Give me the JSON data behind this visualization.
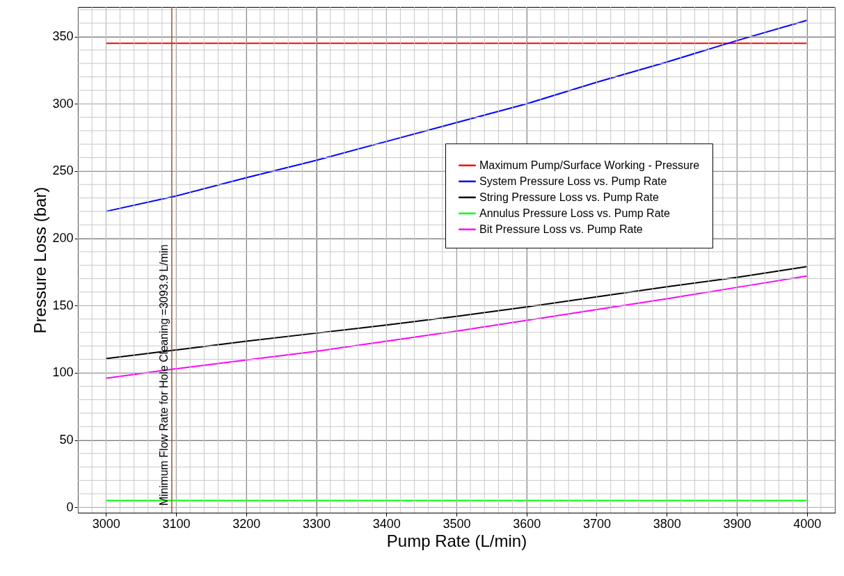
{
  "chart_data": {
    "type": "line",
    "xlabel": "Pump Rate (L/min)",
    "ylabel": "Pressure Loss (bar)",
    "x": [
      3000,
      3100,
      3200,
      3300,
      3400,
      3500,
      3600,
      3700,
      3800,
      3900,
      4000
    ],
    "series": [
      {
        "name": "Maximum Pump/Surface Working - Pressure",
        "color": "#ff0000",
        "values": [
          345,
          345,
          345,
          345,
          345,
          345,
          345,
          345,
          345,
          345,
          345
        ]
      },
      {
        "name": "System Pressure Loss vs. Pump Rate",
        "color": "#0000ff",
        "values": [
          220,
          231.5,
          245,
          258,
          272,
          286,
          300,
          316,
          331,
          347,
          362
        ]
      },
      {
        "name": "String Pressure Loss vs. Pump Rate",
        "color": "#000000",
        "values": [
          110.5,
          117,
          123.5,
          129.5,
          135.5,
          142,
          149,
          156.5,
          164,
          171,
          179
        ]
      },
      {
        "name": "Annulus Pressure Loss vs. Pump Rate",
        "color": "#00ff00",
        "values": [
          5,
          5,
          5,
          5,
          5,
          5,
          5,
          5,
          5,
          5,
          5
        ]
      },
      {
        "name": "Bit Pressure Loss vs. Pump Rate",
        "color": "#ff00ff",
        "values": [
          96,
          103,
          109.5,
          116,
          123.5,
          131,
          139,
          147,
          155,
          163.5,
          172
        ]
      }
    ],
    "xlim": [
      2960,
      4040
    ],
    "ylim": [
      -4,
      372
    ],
    "xticks": [
      3000,
      3100,
      3200,
      3300,
      3400,
      3500,
      3600,
      3700,
      3800,
      3900,
      4000
    ],
    "yticks": [
      0,
      50,
      100,
      150,
      200,
      250,
      300,
      350
    ],
    "ref_lines": [
      {
        "axis": "x",
        "value": 3093.9,
        "label": "Minimum Flow Rate for Hole Cleaning =3093.9 L/min",
        "color": "#a0522d"
      }
    ],
    "grid": true,
    "legend": "right",
    "marker": "none",
    "line_style": "solid"
  }
}
